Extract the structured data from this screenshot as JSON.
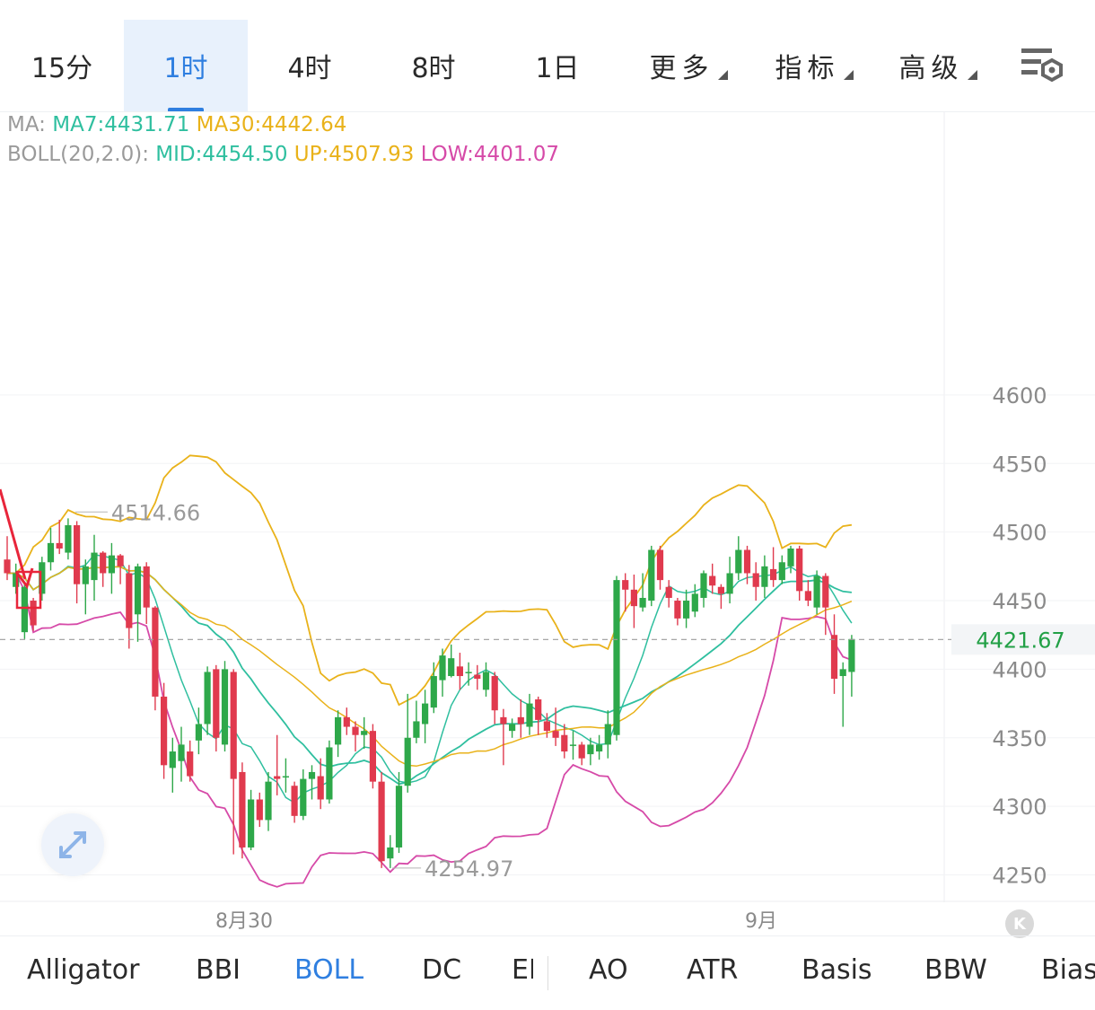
{
  "timeframes": [
    "15分",
    "1时",
    "4时",
    "8时",
    "1日"
  ],
  "active_timeframe": "1时",
  "menus": [
    "更多",
    "指标",
    "高级"
  ],
  "legend": {
    "ma_label": "MA:",
    "ma7": "MA7:4431.71",
    "ma30": "MA30:4442.64",
    "boll_label": "BOLL(20,2.0):",
    "mid": "MID:4454.50",
    "up": "UP:4507.93",
    "low": "LOW:4401.07"
  },
  "indicators": [
    "Alligator",
    "BBI",
    "BOLL",
    "DC",
    "EI",
    "AO",
    "ATR",
    "Basis",
    "BBW",
    "Bias"
  ],
  "active_indicator": "BOLL",
  "colors": {
    "up_candle": "#2ea84a",
    "down_candle": "#e03a4e",
    "ma7": "#2fbf9f",
    "ma30": "#e9b21a",
    "boll_up": "#e9b21a",
    "boll_mid": "#2fbf9f",
    "boll_low": "#d64aa8",
    "accent": "#2f7fe0",
    "current_price": "#22a046"
  },
  "chart_data": {
    "type": "candlestick",
    "y_ticks": [
      4600,
      4550,
      4500,
      4450,
      4400,
      4350,
      4300,
      4250
    ],
    "ylim": [
      4232,
      4670
    ],
    "x_labels": [
      "8月30",
      "9月"
    ],
    "current_price": 4421.67,
    "current_price_label": "4421.67",
    "high_marker": {
      "value": 4514.66,
      "label": "4514.66"
    },
    "low_marker": {
      "value": 4254.97,
      "label": "4254.97"
    },
    "candles": [
      [
        4480,
        4470,
        4497,
        4465
      ],
      [
        4460,
        4470,
        4477,
        4455
      ],
      [
        4427,
        4460,
        4464,
        4422
      ],
      [
        4450,
        4432,
        4452,
        4428
      ],
      [
        4455,
        4478,
        4482,
        4450
      ],
      [
        4478,
        4492,
        4503,
        4472
      ],
      [
        4492,
        4488,
        4509,
        4484
      ],
      [
        4485,
        4505,
        4510,
        4480
      ],
      [
        4505,
        4462,
        4508,
        4448
      ],
      [
        4462,
        4475,
        4480,
        4440
      ],
      [
        4465,
        4485,
        4498,
        4450
      ],
      [
        4485,
        4470,
        4486,
        4460
      ],
      [
        4470,
        4483,
        4492,
        4455
      ],
      [
        4483,
        4475,
        4484,
        4462
      ],
      [
        4470,
        4430,
        4476,
        4415
      ],
      [
        4440,
        4475,
        4477,
        4420
      ],
      [
        4475,
        4445,
        4478,
        4433
      ],
      [
        4445,
        4380,
        4446,
        4370
      ],
      [
        4380,
        4330,
        4390,
        4320
      ],
      [
        4328,
        4340,
        4350,
        4310
      ],
      [
        4333,
        4345,
        4358,
        4318
      ],
      [
        4340,
        4322,
        4348,
        4318
      ],
      [
        4348,
        4360,
        4372,
        4338
      ],
      [
        4360,
        4398,
        4402,
        4352
      ],
      [
        4400,
        4350,
        4403,
        4340
      ],
      [
        4345,
        4400,
        4406,
        4340
      ],
      [
        4398,
        4320,
        4400,
        4265
      ],
      [
        4325,
        4270,
        4332,
        4262
      ],
      [
        4270,
        4305,
        4312,
        4268
      ],
      [
        4305,
        4290,
        4310,
        4285
      ],
      [
        4290,
        4318,
        4325,
        4282
      ],
      [
        4322,
        4320,
        4352,
        4308
      ],
      [
        4322,
        4322,
        4335,
        4310
      ],
      [
        4315,
        4293,
        4318,
        4288
      ],
      [
        4293,
        4320,
        4327,
        4290
      ],
      [
        4320,
        4325,
        4330,
        4305
      ],
      [
        4322,
        4305,
        4335,
        4298
      ],
      [
        4305,
        4343,
        4348,
        4302
      ],
      [
        4345,
        4365,
        4370,
        4336
      ],
      [
        4365,
        4358,
        4372,
        4352
      ],
      [
        4358,
        4352,
        4362,
        4340
      ],
      [
        4352,
        4355,
        4365,
        4342
      ],
      [
        4355,
        4318,
        4360,
        4313
      ],
      [
        4318,
        4260,
        4325,
        4255
      ],
      [
        4262,
        4270,
        4279,
        4255
      ],
      [
        4270,
        4315,
        4325,
        4266
      ],
      [
        4315,
        4350,
        4382,
        4310
      ],
      [
        4350,
        4362,
        4377,
        4346
      ],
      [
        4360,
        4375,
        4385,
        4346
      ],
      [
        4372,
        4395,
        4405,
        4368
      ],
      [
        4392,
        4410,
        4415,
        4380
      ],
      [
        4395,
        4408,
        4418,
        4394
      ],
      [
        4402,
        4395,
        4412,
        4385
      ],
      [
        4398,
        4398,
        4405,
        4388
      ],
      [
        4396,
        4393,
        4403,
        4385
      ],
      [
        4385,
        4398,
        4405,
        4380
      ],
      [
        4395,
        4370,
        4398,
        4360
      ],
      [
        4365,
        4360,
        4371,
        4330
      ],
      [
        4355,
        4360,
        4364,
        4350
      ],
      [
        4365,
        4360,
        4378,
        4350
      ],
      [
        4358,
        4375,
        4382,
        4352
      ],
      [
        4378,
        4363,
        4380,
        4352
      ],
      [
        4362,
        4355,
        4368,
        4350
      ],
      [
        4355,
        4350,
        4372,
        4344
      ],
      [
        4352,
        4340,
        4360,
        4335
      ],
      [
        4345,
        4345,
        4355,
        4334
      ],
      [
        4345,
        4335,
        4347,
        4330
      ],
      [
        4338,
        4345,
        4350,
        4330
      ],
      [
        4340,
        4345,
        4352,
        4334
      ],
      [
        4345,
        4360,
        4370,
        4335
      ],
      [
        4352,
        4465,
        4468,
        4348
      ],
      [
        4465,
        4458,
        4470,
        4442
      ],
      [
        4458,
        4446,
        4469,
        4430
      ],
      [
        4445,
        4452,
        4470,
        4442
      ],
      [
        4450,
        4487,
        4490,
        4446
      ],
      [
        4487,
        4465,
        4490,
        4458
      ],
      [
        4460,
        4452,
        4465,
        4445
      ],
      [
        4450,
        4437,
        4452,
        4432
      ],
      [
        4437,
        4450,
        4458,
        4430
      ],
      [
        4442,
        4455,
        4462,
        4438
      ],
      [
        4452,
        4470,
        4472,
        4445
      ],
      [
        4468,
        4461,
        4477,
        4455
      ],
      [
        4460,
        4455,
        4462,
        4444
      ],
      [
        4455,
        4470,
        4482,
        4448
      ],
      [
        4470,
        4487,
        4497,
        4465
      ],
      [
        4487,
        4470,
        4490,
        4462
      ],
      [
        4470,
        4460,
        4478,
        4450
      ],
      [
        4460,
        4475,
        4483,
        4452
      ],
      [
        4473,
        4465,
        4489,
        4460
      ],
      [
        4465,
        4478,
        4483,
        4462
      ],
      [
        4475,
        4488,
        4490,
        4470
      ],
      [
        4488,
        4457,
        4490,
        4450
      ],
      [
        4457,
        4450,
        4465,
        4446
      ],
      [
        4445,
        4468,
        4472,
        4440
      ],
      [
        4468,
        4445,
        4470,
        4425
      ],
      [
        4425,
        4393,
        4440,
        4382
      ],
      [
        4395,
        4400,
        4405,
        4358
      ],
      [
        4398,
        4422,
        4425,
        4380
      ]
    ]
  }
}
